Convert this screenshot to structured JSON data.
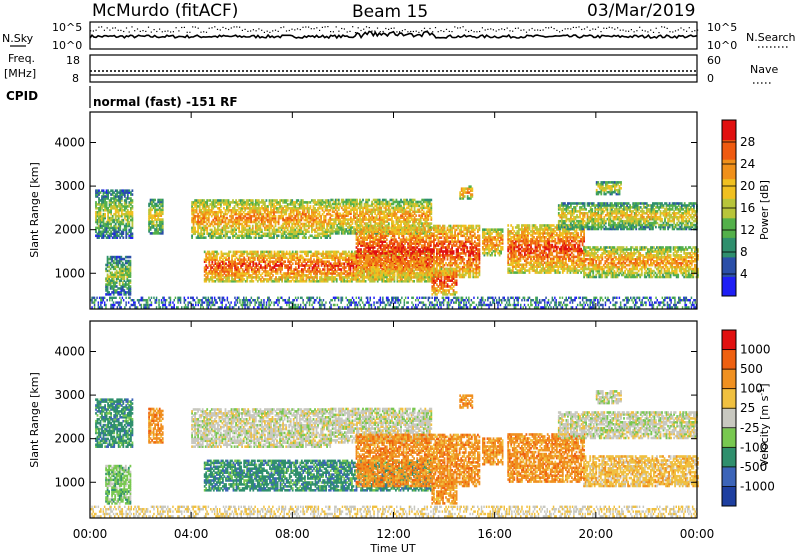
{
  "header": {
    "station": "McMurdo (fitACF)",
    "beam": "Beam 15",
    "date": "03/Mar/2019"
  },
  "noise_panel": {
    "left_label": "N.Sky",
    "right_label": "N.Search",
    "left_ticks": [
      "10^5",
      "10^0"
    ],
    "right_ticks": [
      "10^5",
      "10^0"
    ]
  },
  "freq_panel": {
    "left_label_line1": "Freq.",
    "left_label_line2": "[MHz]",
    "left_ticks": [
      "18",
      "8"
    ],
    "right_label": "Nave",
    "right_ticks": [
      "60",
      "0"
    ]
  },
  "cpid": {
    "label": "CPID",
    "value": "normal (fast) -151 RF"
  },
  "chart_data": [
    {
      "type": "heatmap",
      "panel": "power",
      "ylabel": "Slant Range [km]",
      "yticks": [
        "1000",
        "2000",
        "3000",
        "4000"
      ],
      "ylim": [
        180,
        4700
      ],
      "colorbar_label": "Power [dB]",
      "colorbar_ticks": [
        "28",
        "24",
        "20",
        "16",
        "12",
        "8",
        "4"
      ],
      "colorscale": [
        "#1f1ff5",
        "#2b4fa8",
        "#2f8f6d",
        "#53b04a",
        "#b8c53a",
        "#f0c020",
        "#f0901a",
        "#ef5a10",
        "#e11010"
      ],
      "xlim": [
        "00:00",
        "24:00"
      ],
      "echo_bands_km": [
        [
          800,
          1500
        ],
        [
          1800,
          2700
        ]
      ]
    },
    {
      "type": "heatmap",
      "panel": "velocity",
      "ylabel": "Slant Range [km]",
      "yticks": [
        "1000",
        "2000",
        "3000",
        "4000"
      ],
      "ylim": [
        180,
        4700
      ],
      "colorbar_label": "Velocity [m s^-1]",
      "colorbar_ticks": [
        "1000",
        "500",
        "100",
        "25",
        "-25",
        "-100",
        "-500",
        "-1000"
      ],
      "colorscale": [
        "#1e3fa0",
        "#3c64b8",
        "#2f8f6d",
        "#78c850",
        "#c8c8c0",
        "#f0c040",
        "#f09020",
        "#ef6010",
        "#e11010"
      ],
      "xlabel": "Time UT",
      "xticks": [
        "00:00",
        "04:00",
        "08:00",
        "12:00",
        "16:00",
        "20:00",
        "00:00"
      ],
      "xlim": [
        "00:00",
        "24:00"
      ]
    }
  ]
}
